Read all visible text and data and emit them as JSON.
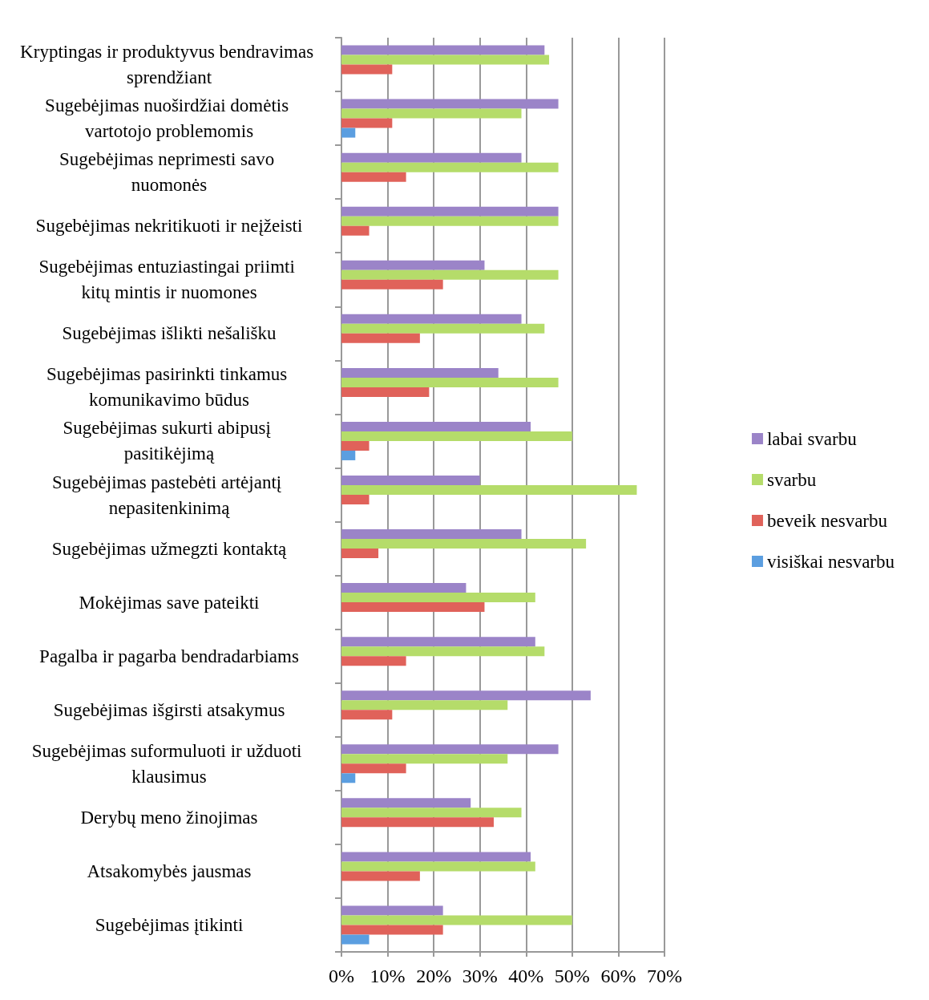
{
  "chart_data": {
    "type": "bar",
    "orientation": "horizontal",
    "categories": [
      "Kryptingas ir produktyvus bendravimas sprendžiant",
      "Sugebėjimas nuoširdžiai domėtis vartotojo problemomis",
      "Sugebėjimas neprimesti savo nuomonės",
      "Sugebėjimas nekritikuoti ir neįžeisti",
      "Sugebėjimas entuziastingai priimti kitų mintis ir nuomones",
      "Sugebėjimas išlikti nešališku",
      "Sugebėjimas pasirinkti tinkamus komunikavimo būdus",
      "Sugebėjimas sukurti abipusį pasitikėjimą",
      "Sugebėjimas pastebėti artėjantį nepasitenkinimą",
      "Sugebėjimas užmegzti kontaktą",
      "Mokėjimas save pateikti",
      "Pagalba ir pagarba bendradarbiams",
      "Sugebėjimas išgirsti atsakymus",
      "Sugebėjimas suformuluoti ir užduoti klausimus",
      "Derybų meno žinojimas",
      "Atsakomybės jausmas",
      "Sugebėjimas įtikinti"
    ],
    "series": [
      {
        "name": "labai svarbu",
        "color": "#9b84c8",
        "values": [
          44,
          47,
          39,
          47,
          31,
          39,
          34,
          41,
          30,
          39,
          27,
          42,
          54,
          47,
          28,
          41,
          22
        ]
      },
      {
        "name": "svarbu",
        "color": "#b5dc6a",
        "values": [
          45,
          39,
          47,
          47,
          47,
          44,
          47,
          50,
          64,
          53,
          42,
          44,
          36,
          36,
          39,
          42,
          50
        ]
      },
      {
        "name": "beveik nesvarbu",
        "color": "#e0625a",
        "values": [
          11,
          11,
          14,
          6,
          22,
          17,
          19,
          6,
          6,
          8,
          31,
          14,
          11,
          14,
          33,
          17,
          22
        ]
      },
      {
        "name": "visiškai nesvarbu",
        "color": "#5b9ee0",
        "values": [
          null,
          3,
          null,
          null,
          null,
          null,
          null,
          3,
          null,
          null,
          null,
          null,
          null,
          3,
          null,
          null,
          6
        ]
      }
    ],
    "xlim": [
      0,
      70
    ],
    "xticks": [
      {
        "value": 0,
        "label": "0%"
      },
      {
        "value": 10,
        "label": "10%"
      },
      {
        "value": 20,
        "label": "20%"
      },
      {
        "value": 30,
        "label": "30%"
      },
      {
        "value": 40,
        "label": "40%"
      },
      {
        "value": 50,
        "label": "50%"
      },
      {
        "value": 60,
        "label": "60%"
      },
      {
        "value": 70,
        "label": "70%"
      }
    ],
    "grid": "x",
    "legend": "right"
  }
}
